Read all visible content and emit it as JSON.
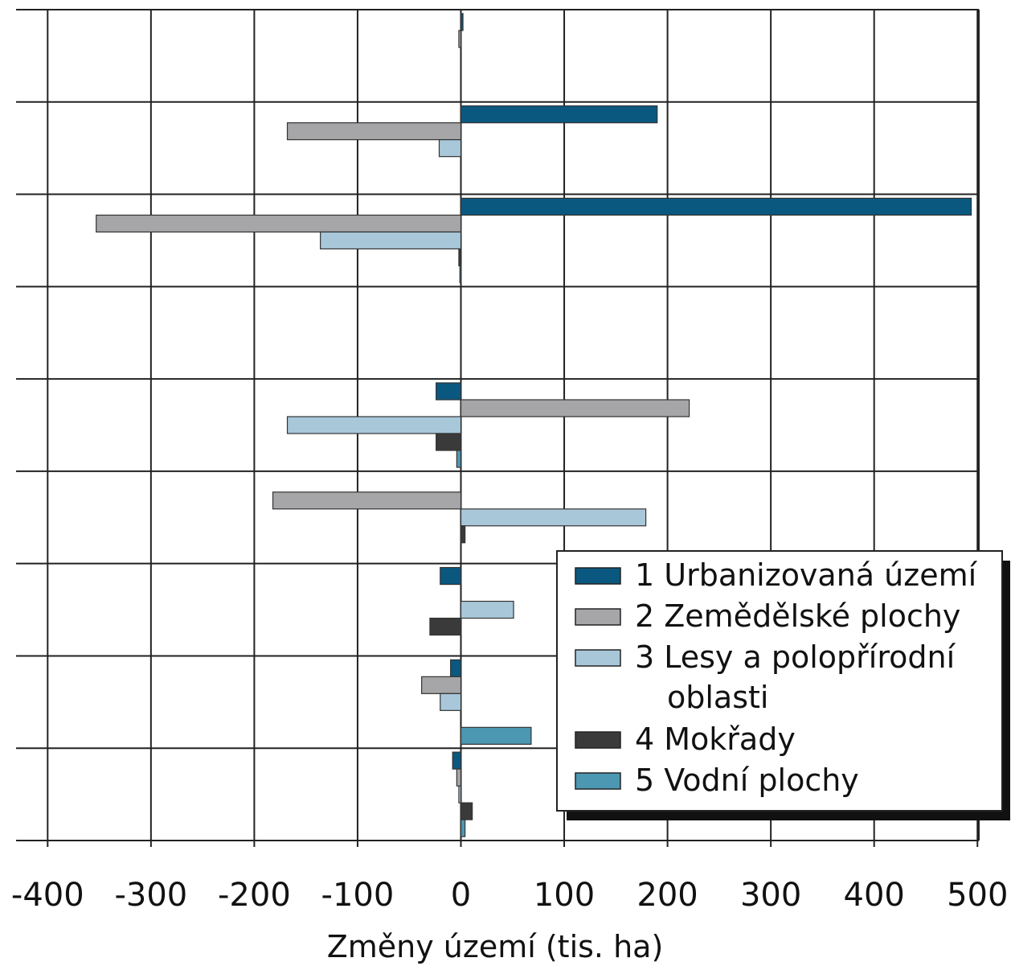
{
  "chart_data": {
    "type": "bar",
    "orientation": "horizontal",
    "xlabel": "Změny území (tis. ha)",
    "xlim": [
      -400,
      500
    ],
    "xticks": [
      -400,
      -300,
      -200,
      -100,
      0,
      100,
      200,
      300,
      400,
      500
    ],
    "xtick_labels": [
      "-400",
      "-300",
      "-200",
      "-100",
      "0",
      "100",
      "200",
      "300",
      "400",
      "500"
    ],
    "grid": true,
    "legend_position": "bottom-right",
    "categories": [
      "",
      "",
      "",
      "",
      "",
      "",
      "",
      "",
      ""
    ],
    "series": [
      {
        "name": "1 Urbanizovaná území",
        "color": "#0a5880",
        "values": [
          2,
          190,
          494,
          0,
          -24,
          0,
          -20,
          -10,
          -8
        ]
      },
      {
        "name": "2 Zemědělské plochy",
        "color": "#a6a6a8",
        "values": [
          -2,
          -168,
          -353,
          0,
          221,
          -182,
          0,
          -38,
          -4
        ]
      },
      {
        "name": "3 Lesy a polopřírodní oblasti",
        "legend_lines": [
          "3 Lesy a polopřírodní",
          "oblasti"
        ],
        "color": "#a8c8da",
        "values": [
          0,
          -21,
          -136,
          0,
          -168,
          179,
          51,
          -20,
          -2
        ]
      },
      {
        "name": "4 Mokřady",
        "color": "#3a3a3a",
        "values": [
          0,
          0,
          -2,
          0,
          -24,
          4,
          -30,
          0,
          11
        ]
      },
      {
        "name": "5 Vodní plochy",
        "color": "#4c97b2",
        "values": [
          0,
          0,
          -1,
          0,
          -4,
          0,
          0,
          68,
          4
        ]
      }
    ]
  }
}
